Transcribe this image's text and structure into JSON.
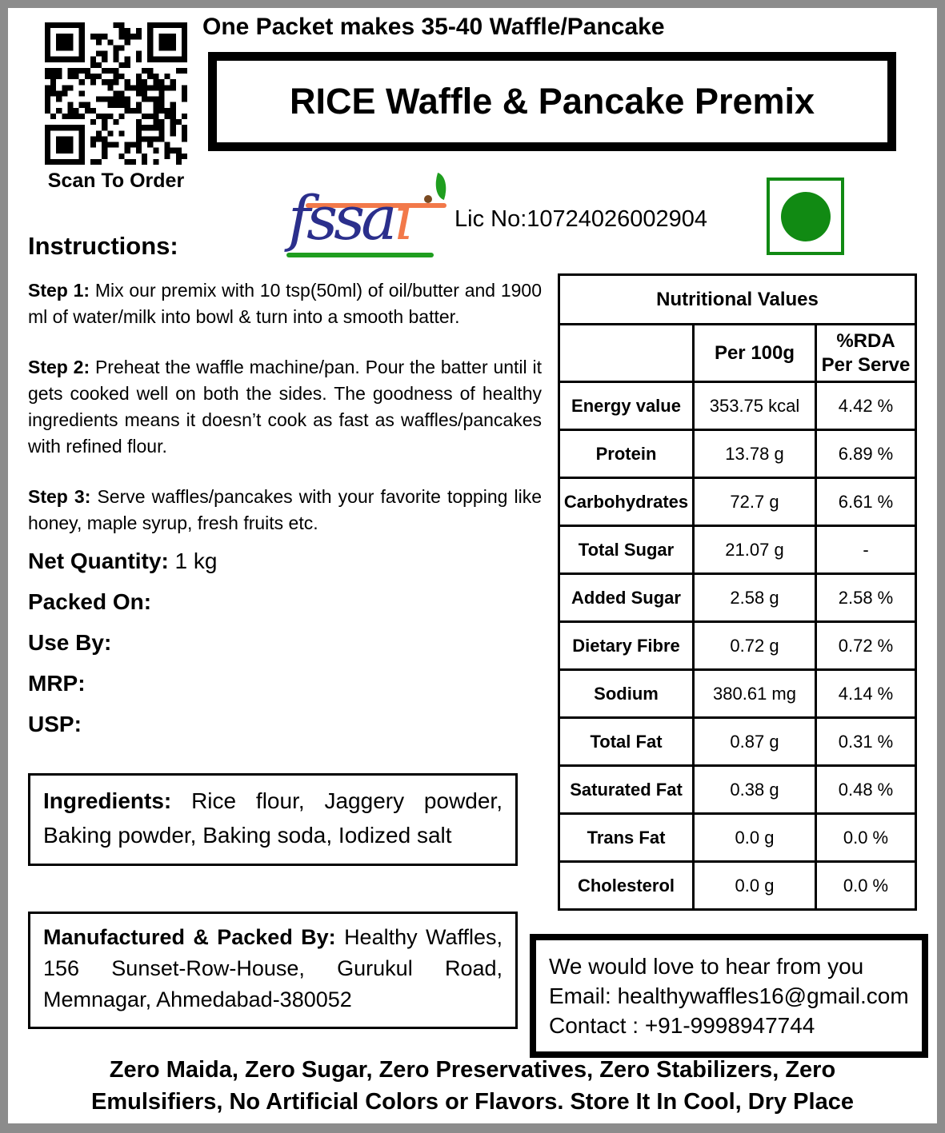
{
  "header": {
    "top_note": "One Packet makes 35-40 Waffle/Pancake",
    "title": "RICE Waffle & Pancake Premix"
  },
  "qr": {
    "caption": "Scan To Order"
  },
  "fssai": {
    "wordmark_main": "fssa",
    "wordmark_i": "ı",
    "license": "Lic No:10724026002904",
    "colors": {
      "blue": "#2b2f8c",
      "orange": "#f2794a",
      "green": "#1f9e1f"
    }
  },
  "veg_mark": {
    "color": "#118a13"
  },
  "instructions": {
    "heading": "Instructions:",
    "steps": [
      {
        "label": "Step 1:",
        "text": "Mix our premix with 10 tsp(50ml) of oil/butter and 1900 ml of water/milk into bowl & turn into a smooth batter."
      },
      {
        "label": "Step 2:",
        "text": "Preheat the waffle machine/pan. Pour the batter until it gets cooked well on both the sides. The goodness of healthy ingredients means it doesn’t cook as fast as waffles/pancakes with refined flour."
      },
      {
        "label": "Step 3:",
        "text": "Serve waffles/pancakes with your favorite topping like honey, maple syrup, fresh fruits etc."
      }
    ]
  },
  "details": [
    {
      "label": "Net Quantity:",
      "value": "1 kg"
    },
    {
      "label": "Packed On:",
      "value": ""
    },
    {
      "label": "Use By:",
      "value": ""
    },
    {
      "label": "MRP:",
      "value": ""
    },
    {
      "label": "USP:",
      "value": ""
    }
  ],
  "ingredients": {
    "label": "Ingredients:",
    "text": "Rice flour, Jaggery powder, Baking powder, Baking soda, Iodized salt"
  },
  "manufacturer": {
    "label": "Manufactured & Packed By:",
    "text": "Healthy Waffles, 156 Sunset-Row-House, Gurukul Road, Memnagar, Ahmedabad-380052"
  },
  "nutrition": {
    "title": "Nutritional Values",
    "col_blank": "",
    "col_per_100g": "Per 100g",
    "col_rda": "%RDA\nPer Serve",
    "rows": [
      {
        "name": "Energy value",
        "per_100g": "353.75 kcal",
        "rda": "4.42 %"
      },
      {
        "name": "Protein",
        "per_100g": "13.78 g",
        "rda": "6.89 %"
      },
      {
        "name": "Carbohydrates",
        "per_100g": "72.7 g",
        "rda": "6.61 %"
      },
      {
        "name": "Total Sugar",
        "per_100g": "21.07 g",
        "rda": "-"
      },
      {
        "name": "Added Sugar",
        "per_100g": "2.58 g",
        "rda": "2.58 %"
      },
      {
        "name": "Dietary Fibre",
        "per_100g": "0.72 g",
        "rda": "0.72 %"
      },
      {
        "name": "Sodium",
        "per_100g": "380.61 mg",
        "rda": "4.14 %"
      },
      {
        "name": "Total Fat",
        "per_100g": "0.87 g",
        "rda": "0.31 %"
      },
      {
        "name": "Saturated Fat",
        "per_100g": "0.38 g",
        "rda": "0.48 %"
      },
      {
        "name": "Trans Fat",
        "per_100g": "0.0 g",
        "rda": "0.0 %"
      },
      {
        "name": "Cholesterol",
        "per_100g": "0.0 g",
        "rda": "0.0 %"
      }
    ]
  },
  "contact": {
    "line1": "We would love to hear from you",
    "line2": "Email: healthywaffles16@gmail.com",
    "line3": "Contact : +91-9998947744"
  },
  "footer": {
    "text": "Zero Maida, Zero Sugar, Zero Preservatives, Zero Stabilizers, Zero Emulsifiers, No Artificial Colors or Flavors. Store It In Cool, Dry Place"
  }
}
